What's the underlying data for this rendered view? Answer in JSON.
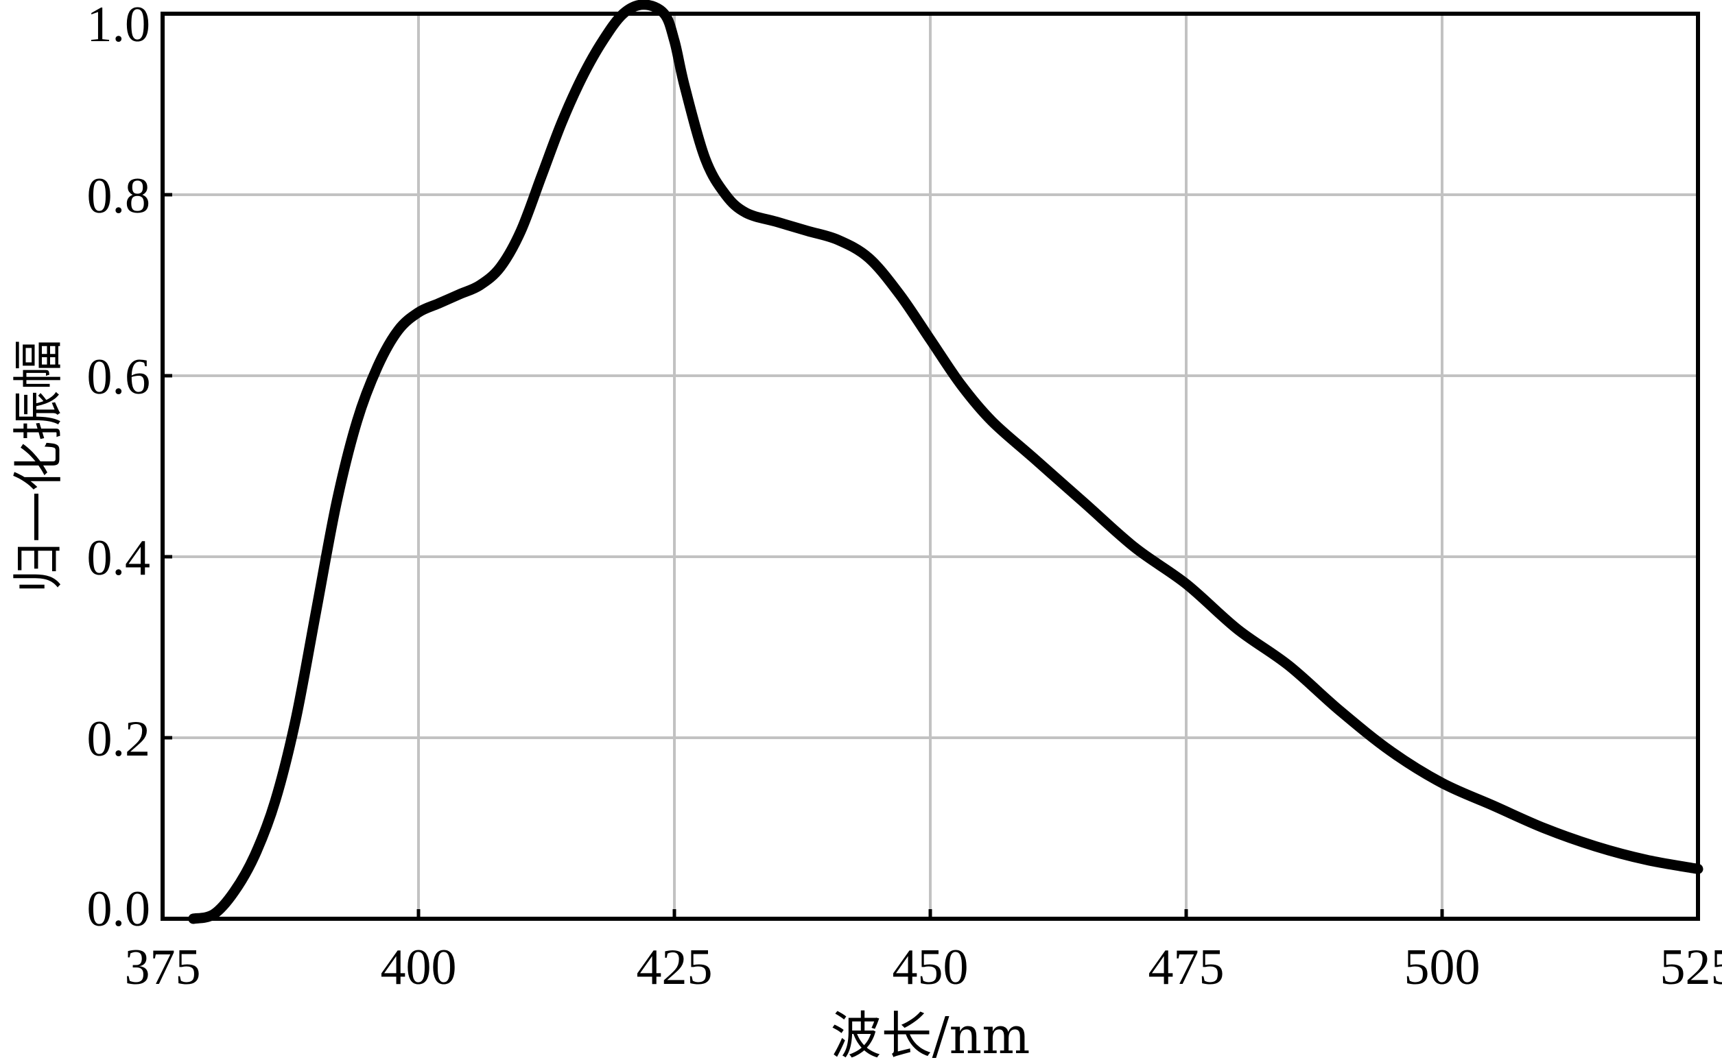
{
  "chart_data": {
    "type": "line",
    "title": "",
    "xlabel": "波长/nm",
    "ylabel": "归一化振幅",
    "xlim": [
      375,
      525
    ],
    "ylim": [
      0.0,
      1.0
    ],
    "x_ticks": [
      "375",
      "400",
      "425",
      "450",
      "475",
      "500",
      "525"
    ],
    "y_ticks": [
      "0.0",
      "0.2",
      "0.4",
      "0.6",
      "0.8",
      "1.0"
    ],
    "grid": true,
    "legend": "none",
    "series": [
      {
        "color": "#000000",
        "x": [
          378,
          380,
          382,
          384,
          386,
          388,
          390,
          392,
          394,
          396,
          398,
          400,
          402,
          404,
          406,
          408,
          410,
          412,
          414,
          416,
          418,
          420,
          422,
          424,
          425,
          426,
          428,
          430,
          432,
          435,
          438,
          441,
          444,
          447,
          450,
          453,
          456,
          460,
          465,
          470,
          475,
          480,
          485,
          490,
          495,
          500,
          505,
          510,
          515,
          520,
          525
        ],
        "y": [
          0.0,
          0.005,
          0.03,
          0.07,
          0.13,
          0.22,
          0.34,
          0.46,
          0.55,
          0.61,
          0.65,
          0.67,
          0.68,
          0.69,
          0.7,
          0.72,
          0.76,
          0.82,
          0.88,
          0.93,
          0.97,
          1.0,
          1.01,
          1.0,
          0.97,
          0.92,
          0.84,
          0.8,
          0.78,
          0.77,
          0.76,
          0.75,
          0.73,
          0.69,
          0.64,
          0.59,
          0.55,
          0.51,
          0.46,
          0.41,
          0.37,
          0.32,
          0.28,
          0.23,
          0.185,
          0.15,
          0.125,
          0.1,
          0.08,
          0.065,
          0.055
        ]
      }
    ]
  }
}
